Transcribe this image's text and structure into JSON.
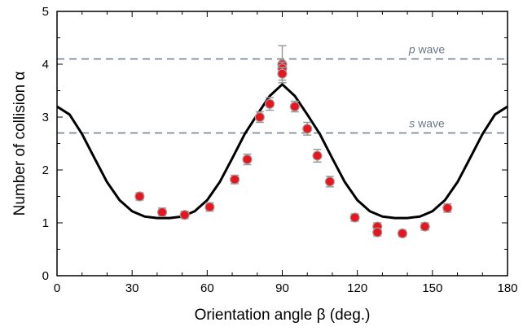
{
  "chart_data": {
    "type": "scatter",
    "xlabel": "Orientation angle  β (deg.)",
    "ylabel": "Number of collision α",
    "xlim": [
      0,
      180
    ],
    "ylim": [
      0,
      5
    ],
    "x_ticks": [
      0,
      30,
      60,
      90,
      120,
      150,
      180
    ],
    "x_tick_labels": [
      "0",
      "30",
      "60",
      "90",
      "120",
      "150",
      "180"
    ],
    "y_ticks": [
      0,
      1,
      2,
      3,
      4,
      5
    ],
    "y_tick_labels": [
      "0",
      "1",
      "2",
      "3",
      "4",
      "5"
    ],
    "grid": false,
    "colors": {
      "points": "#e8141e",
      "errorbars": "#9a9a9a",
      "curve": "#000000",
      "reference_lines": "#6b7a8a"
    },
    "reference_lines": [
      {
        "y": 4.1,
        "label_italic": "p",
        "label_rest": " wave"
      },
      {
        "y": 2.7,
        "label_italic": "s",
        "label_rest": " wave"
      }
    ],
    "series": [
      {
        "type": "scatter",
        "points": [
          {
            "x": 33,
            "y": 1.5,
            "err": 0.07
          },
          {
            "x": 42,
            "y": 1.2,
            "err": 0.08
          },
          {
            "x": 51,
            "y": 1.15,
            "err": 0.07
          },
          {
            "x": 61,
            "y": 1.3,
            "err": 0.08
          },
          {
            "x": 71,
            "y": 1.82,
            "err": 0.08
          },
          {
            "x": 76,
            "y": 2.2,
            "err": 0.1
          },
          {
            "x": 81,
            "y": 3.0,
            "err": 0.1
          },
          {
            "x": 85,
            "y": 3.25,
            "err": 0.12
          },
          {
            "x": 90,
            "y": 4.0,
            "err": 0.35
          },
          {
            "x": 90,
            "y": 3.92,
            "err": 0.12
          },
          {
            "x": 90,
            "y": 3.82,
            "err": 0.12
          },
          {
            "x": 95,
            "y": 3.2,
            "err": 0.1
          },
          {
            "x": 100,
            "y": 2.78,
            "err": 0.12
          },
          {
            "x": 104,
            "y": 2.27,
            "err": 0.12
          },
          {
            "x": 109,
            "y": 1.78,
            "err": 0.1
          },
          {
            "x": 119,
            "y": 1.1,
            "err": 0.07
          },
          {
            "x": 128,
            "y": 0.93,
            "err": 0.07
          },
          {
            "x": 128,
            "y": 0.82,
            "err": 0.07
          },
          {
            "x": 138,
            "y": 0.8,
            "err": 0.06
          },
          {
            "x": 147,
            "y": 0.93,
            "err": 0.07
          },
          {
            "x": 156,
            "y": 1.28,
            "err": 0.08
          }
        ]
      },
      {
        "type": "line",
        "x": [
          0,
          5,
          10,
          15,
          20,
          25,
          30,
          35,
          40,
          45,
          50,
          55,
          60,
          65,
          70,
          75,
          80,
          85,
          90,
          95,
          100,
          105,
          110,
          115,
          120,
          125,
          130,
          135,
          140,
          145,
          150,
          155,
          160,
          165,
          170,
          175,
          180
        ],
        "y": [
          3.2,
          3.05,
          2.68,
          2.22,
          1.77,
          1.43,
          1.22,
          1.12,
          1.09,
          1.09,
          1.12,
          1.22,
          1.43,
          1.77,
          2.22,
          2.68,
          3.05,
          3.4,
          3.62,
          3.4,
          3.05,
          2.68,
          2.22,
          1.77,
          1.43,
          1.22,
          1.12,
          1.09,
          1.09,
          1.12,
          1.22,
          1.43,
          1.77,
          2.22,
          2.68,
          3.05,
          3.2
        ]
      }
    ]
  }
}
